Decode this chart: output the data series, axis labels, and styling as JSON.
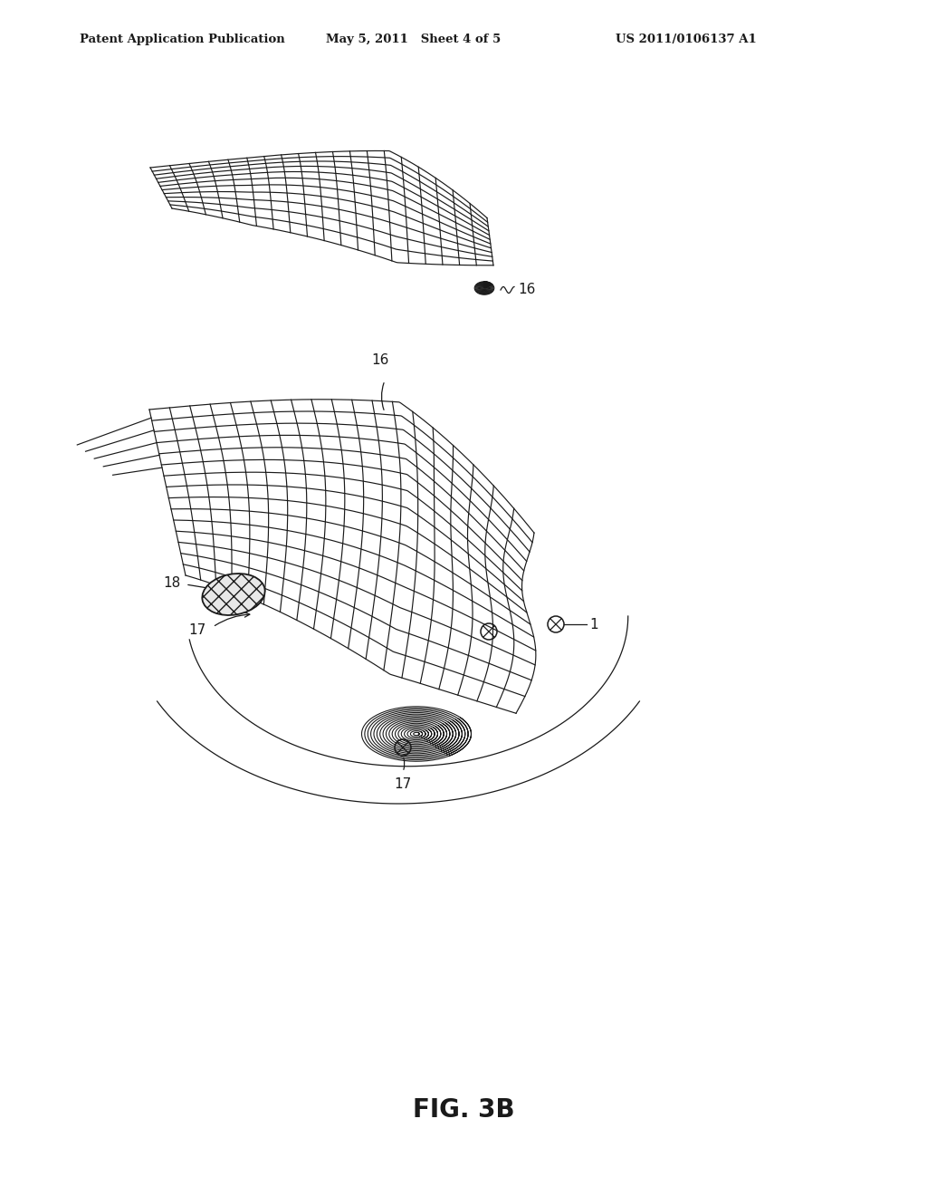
{
  "bg_color": "#ffffff",
  "line_color": "#1a1a1a",
  "title_left": "Patent Application Publication",
  "title_center": "May 5, 2011   Sheet 4 of 5",
  "title_right": "US 2011/0106137 A1",
  "fig_label": "FIG. 3B",
  "label_16_top": "16",
  "label_16_bottom": "16",
  "label_17a": "17",
  "label_17b": "17",
  "label_18": "18",
  "label_1": "1"
}
